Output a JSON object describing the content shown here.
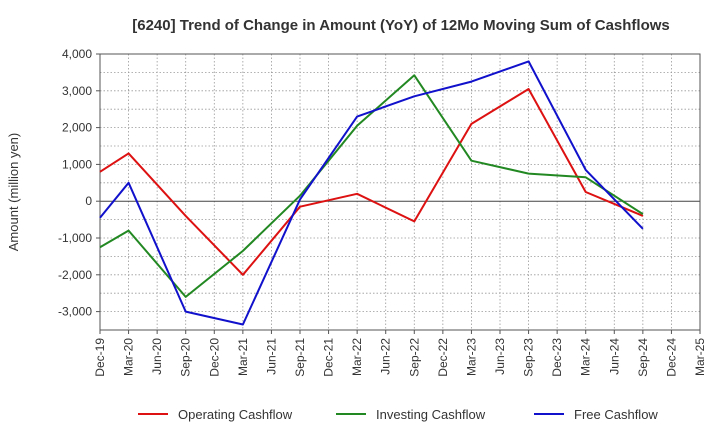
{
  "chart_data": {
    "type": "line",
    "title": "[6240]  Trend of Change in Amount (YoY) of 12Mo Moving Sum of Cashflows",
    "xlabel": "",
    "ylabel": "Amount (million yen)",
    "ylim": [
      -3500,
      4000
    ],
    "yticks": [
      4000,
      3000,
      2000,
      1000,
      0,
      -1000,
      -2000,
      -3000
    ],
    "ytick_labels": [
      "4,000",
      "3,000",
      "2,000",
      "1,000",
      "0",
      "-1,000",
      "-2,000",
      "-3,000"
    ],
    "categories": [
      "Dec-19",
      "Mar-20",
      "Jun-20",
      "Sep-20",
      "Dec-20",
      "Mar-21",
      "Jun-21",
      "Sep-21",
      "Dec-21",
      "Mar-22",
      "Jun-22",
      "Sep-22",
      "Dec-22",
      "Mar-23",
      "Jun-23",
      "Sep-23",
      "Dec-23",
      "Mar-24",
      "Jun-24",
      "Sep-24",
      "Dec-24",
      "Mar-25"
    ],
    "grid": true,
    "legend_position": "bottom",
    "series": [
      {
        "name": "Operating Cashflow",
        "color": "#dd1111",
        "values": [
          800,
          1300,
          null,
          -400,
          null,
          -2000,
          null,
          -150,
          null,
          200,
          null,
          -550,
          null,
          2100,
          null,
          3050,
          null,
          250,
          null,
          -400,
          null,
          null
        ]
      },
      {
        "name": "Investing Cashflow",
        "color": "#228822",
        "values": [
          -1250,
          -800,
          null,
          -2600,
          null,
          -1350,
          null,
          150,
          null,
          2050,
          null,
          3420,
          null,
          1100,
          null,
          750,
          null,
          650,
          null,
          -350,
          null,
          null
        ]
      },
      {
        "name": "Free Cashflow",
        "color": "#1111cc",
        "values": [
          -450,
          500,
          null,
          -3000,
          null,
          -3350,
          null,
          50,
          null,
          2300,
          null,
          2850,
          null,
          3250,
          null,
          3800,
          null,
          850,
          null,
          -750,
          null,
          null
        ]
      }
    ]
  }
}
